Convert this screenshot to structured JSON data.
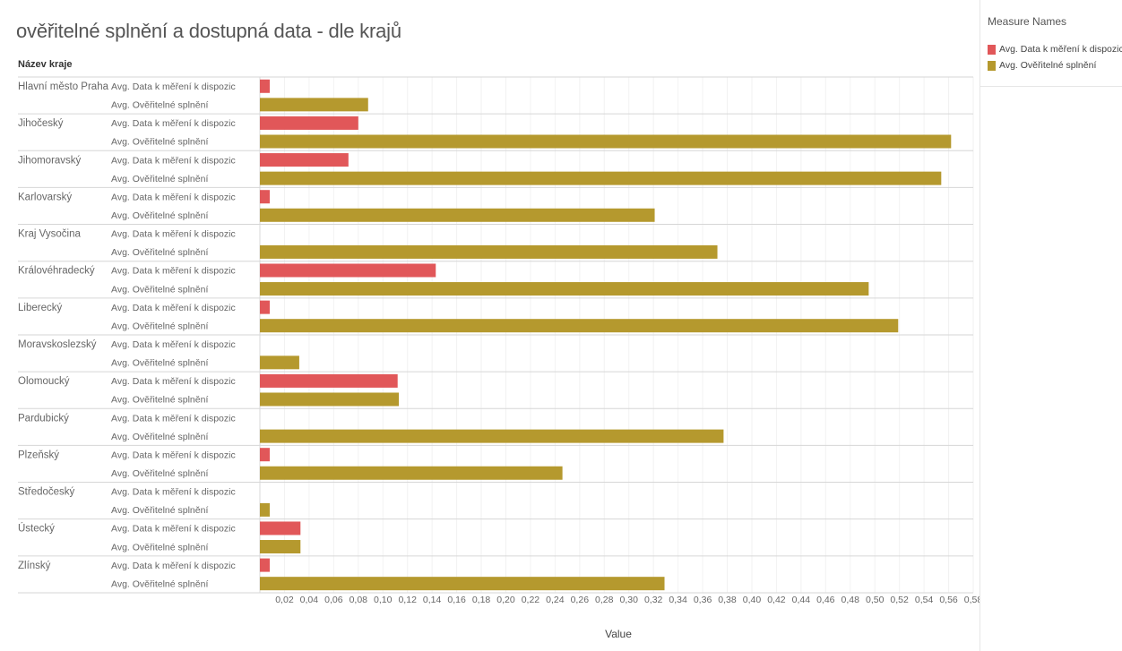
{
  "title": "ověřitelné splnění a dostupná data - dle krajů",
  "row_header": "Název kraje",
  "legend": {
    "title": "Measure Names",
    "items": [
      {
        "label": "Avg. Data k měření k dispozic",
        "color": "#e15759"
      },
      {
        "label": "Avg. Ověřitelné splnění",
        "color": "#b5992e"
      }
    ]
  },
  "chart_data": {
    "type": "bar",
    "orientation": "horizontal",
    "xlabel": "Value",
    "xlim": [
      0,
      0.58
    ],
    "xticks": [
      "0,02",
      "0,04",
      "0,06",
      "0,08",
      "0,10",
      "0,12",
      "0,14",
      "0,16",
      "0,18",
      "0,20",
      "0,22",
      "0,24",
      "0,26",
      "0,28",
      "0,30",
      "0,32",
      "0,34",
      "0,36",
      "0,38",
      "0,40",
      "0,42",
      "0,44",
      "0,46",
      "0,48",
      "0,50",
      "0,52",
      "0,54",
      "0,56",
      "0,58"
    ],
    "grid": true,
    "measures": [
      "Avg. Data k měření k dispozic",
      "Avg. Ověřitelné splnění"
    ],
    "categories": [
      "Hlavní město Praha",
      "Jihočeský",
      "Jihomoravský",
      "Karlovarský",
      "Kraj Vysočina",
      "Královéhradecký",
      "Liberecký",
      "Moravskoslezský",
      "Olomoucký",
      "Pardubický",
      "Plzeňský",
      "Středočeský",
      "Ústecký",
      "Zlínský"
    ],
    "series": [
      {
        "name": "Avg. Data k měření k dispozic",
        "color": "#e15759",
        "values": [
          0.008,
          0.08,
          0.072,
          0.008,
          0,
          0.143,
          0.008,
          0,
          0.112,
          0,
          0.008,
          0,
          0.033,
          0.008
        ]
      },
      {
        "name": "Avg. Ověřitelné splnění",
        "color": "#b5992e",
        "values": [
          0.088,
          0.562,
          0.554,
          0.321,
          0.372,
          0.495,
          0.519,
          0.032,
          0.113,
          0.377,
          0.246,
          0.008,
          0.033,
          0.329
        ]
      }
    ]
  }
}
